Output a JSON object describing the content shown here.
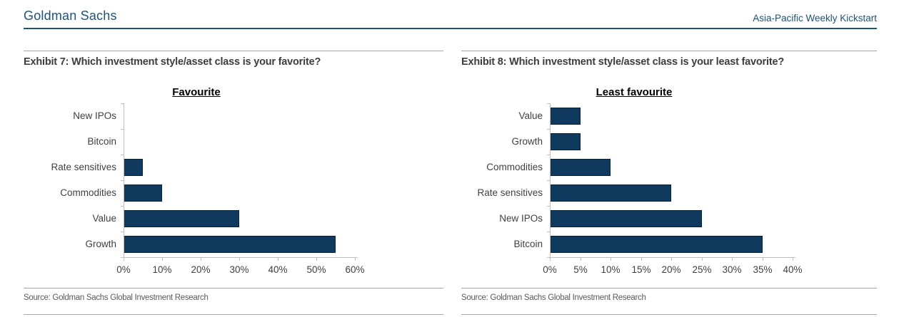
{
  "header": {
    "brand": "Goldman Sachs",
    "report_title": "Asia-Pacific Weekly Kickstart"
  },
  "exhibits": [
    {
      "heading": "Exhibit 7: Which investment style/asset class is your favorite?",
      "source": "Source: Goldman Sachs Global Investment Research"
    },
    {
      "heading": "Exhibit 8: Which investment style/asset class is your least favorite?",
      "source": "Source: Goldman Sachs Global Investment Research"
    }
  ],
  "colors": {
    "brand_blue": "#1d5379",
    "bar_fill": "#10395e",
    "bar_border": "#0a2239",
    "axis_gray": "#bfbfbf",
    "rule_gray": "#a8a8a8"
  },
  "chart_data": [
    {
      "type": "bar",
      "orientation": "horizontal",
      "title": "Favourite",
      "categories": [
        "New IPOs",
        "Bitcoin",
        "Rate sensitives",
        "Commodities",
        "Value",
        "Growth"
      ],
      "values": [
        0,
        0,
        5,
        10,
        30,
        55
      ],
      "unit": "%",
      "xlim": [
        0,
        60
      ],
      "xticks": [
        "0%",
        "10%",
        "20%",
        "30%",
        "40%",
        "50%",
        "60%"
      ],
      "grid": false,
      "legend": false
    },
    {
      "type": "bar",
      "orientation": "horizontal",
      "title": "Least favourite",
      "categories": [
        "Value",
        "Growth",
        "Commodities",
        "Rate sensitives",
        "New IPOs",
        "Bitcoin"
      ],
      "values": [
        5,
        5,
        10,
        20,
        25,
        35
      ],
      "unit": "%",
      "xlim": [
        0,
        40
      ],
      "xticks": [
        "0%",
        "5%",
        "10%",
        "15%",
        "20%",
        "25%",
        "30%",
        "35%",
        "40%"
      ],
      "grid": false,
      "legend": false
    }
  ]
}
